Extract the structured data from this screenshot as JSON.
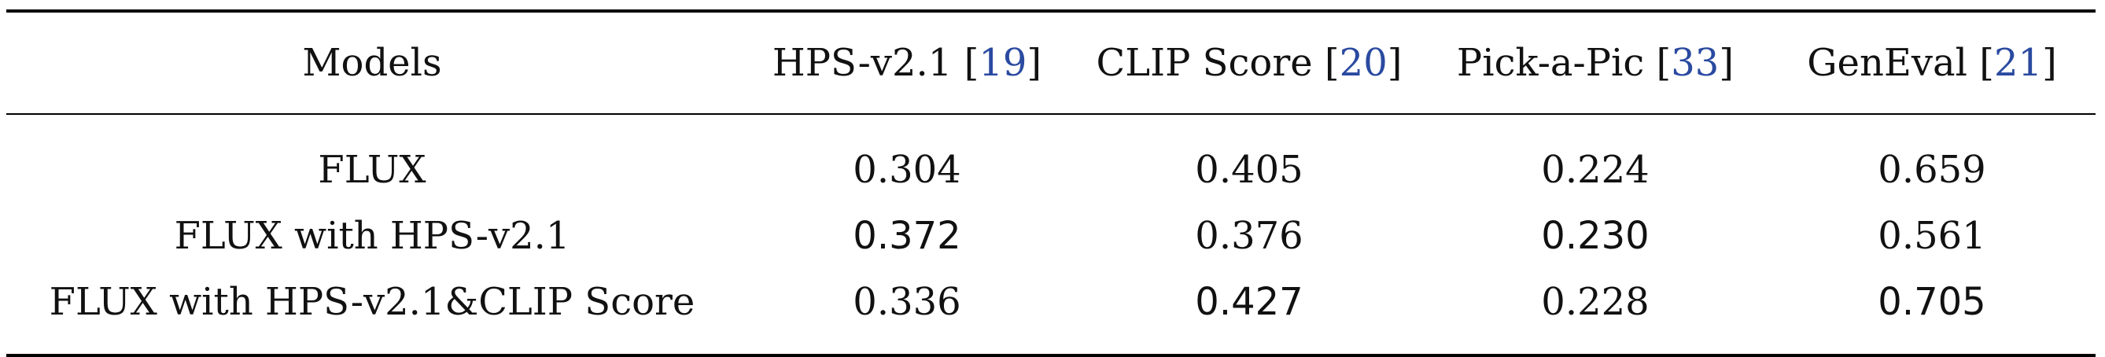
{
  "table": {
    "header": {
      "models_label": "Models",
      "metrics": [
        {
          "name": "HPS-v2.1",
          "ref": "19"
        },
        {
          "name": "CLIP Score",
          "ref": "20"
        },
        {
          "name": "Pick-a-Pic",
          "ref": "33"
        },
        {
          "name": "GenEval",
          "ref": "21"
        }
      ]
    },
    "rows": [
      {
        "model": "FLUX",
        "values": [
          "0.304",
          "0.405",
          "0.224",
          "0.659"
        ]
      },
      {
        "model": "FLUX with HPS-v2.1",
        "values": [
          "0.372",
          "0.376",
          "0.230",
          "0.561"
        ]
      },
      {
        "model": "FLUX with HPS-v2.1&CLIP Score",
        "values": [
          "0.336",
          "0.427",
          "0.228",
          "0.705"
        ]
      }
    ],
    "bold_cells": [
      {
        "row": 1,
        "col": 0
      },
      {
        "row": 1,
        "col": 2
      },
      {
        "row": 2,
        "col": 1
      },
      {
        "row": 2,
        "col": 3
      }
    ]
  },
  "chart_data": {
    "type": "table",
    "columns": [
      "Models",
      "HPS-v2.1 [19]",
      "CLIP Score [20]",
      "Pick-a-Pic [33]",
      "GenEval [21]"
    ],
    "rows": [
      [
        "FLUX",
        0.304,
        0.405,
        0.224,
        0.659
      ],
      [
        "FLUX with HPS-v2.1",
        0.372,
        0.376,
        0.23,
        0.561
      ],
      [
        "FLUX with HPS-v2.1&CLIP Score",
        0.336,
        0.427,
        0.228,
        0.705
      ]
    ]
  }
}
